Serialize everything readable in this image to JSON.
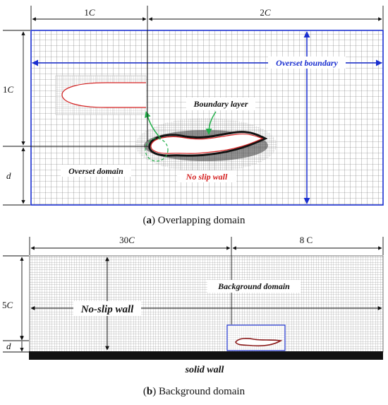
{
  "panel_a": {
    "dim_top_left_num": "1",
    "dim_top_left_var": "C",
    "dim_top_right_num": "2",
    "dim_top_right_var": "C",
    "dim_left_upper_num": "1",
    "dim_left_upper_var": "C",
    "dim_left_lower": "d",
    "overset_boundary": "Overset boundary",
    "boundary_layer": "Boundary layer",
    "overset_domain": "Overset domain",
    "no_slip_wall": "No slip wall",
    "caption_letter": "a",
    "caption_text": "Overlapping domain"
  },
  "panel_b": {
    "dim_top_left_num": "30",
    "dim_top_left_var": "C",
    "dim_top_right": "8 C",
    "dim_left_upper_num": "5",
    "dim_left_upper_var": "C",
    "dim_left_lower": "d",
    "background_domain": "Background domain",
    "no_slip_wall": "No-slip wall",
    "solid_wall": "solid wall",
    "caption_letter": "b",
    "caption_text": "Background domain"
  },
  "colors": {
    "boundary_blue": "#1a2fd0",
    "mesh_gray": "#6a6a6a",
    "wall_red": "#d42020",
    "green": "#22b04a"
  }
}
